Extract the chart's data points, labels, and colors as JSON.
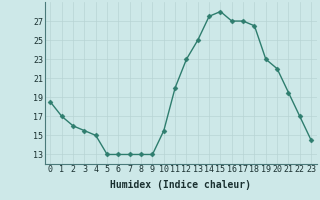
{
  "x": [
    0,
    1,
    2,
    3,
    4,
    5,
    6,
    7,
    8,
    9,
    10,
    11,
    12,
    13,
    14,
    15,
    16,
    17,
    18,
    19,
    20,
    21,
    22,
    23
  ],
  "y": [
    18.5,
    17,
    16,
    15.5,
    15,
    13,
    13,
    13,
    13,
    13,
    15.5,
    20,
    23,
    25,
    27.5,
    28,
    27,
    27,
    26.5,
    23,
    22,
    19.5,
    17,
    14.5
  ],
  "line_color": "#2e7d6e",
  "marker_color": "#2e7d6e",
  "bg_color": "#cde8e8",
  "grid_color": "#b8d4d4",
  "xlabel": "Humidex (Indice chaleur)",
  "xlim": [
    -0.5,
    23.5
  ],
  "ylim": [
    12,
    29
  ],
  "yticks": [
    13,
    15,
    17,
    19,
    21,
    23,
    25,
    27
  ],
  "xticks": [
    0,
    1,
    2,
    3,
    4,
    5,
    6,
    7,
    8,
    9,
    10,
    11,
    12,
    13,
    14,
    15,
    16,
    17,
    18,
    19,
    20,
    21,
    22,
    23
  ],
  "xlabel_fontsize": 7,
  "tick_fontsize": 6,
  "line_width": 1.0,
  "marker_size": 2.5
}
